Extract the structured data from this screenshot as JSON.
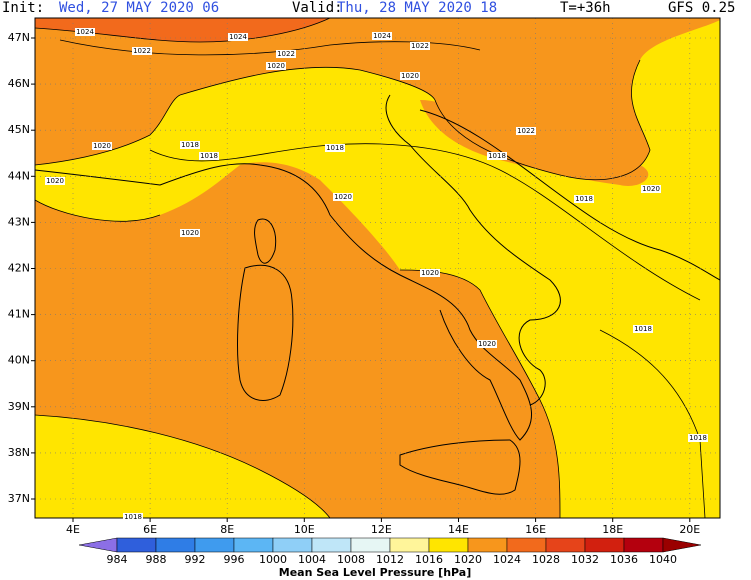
{
  "header": {
    "init_label": "Init:",
    "init": "Wed, 27 MAY 2020  06",
    "valid_label": "Valid:",
    "valid": "Thu, 28 MAY 2020  18",
    "lead": "T=+36h",
    "model": "GFS 0.25"
  },
  "map": {
    "lat_labels": [
      "47N",
      "46N",
      "45N",
      "44N",
      "43N",
      "42N",
      "41N",
      "40N",
      "39N",
      "38N",
      "37N"
    ],
    "lon_labels": [
      "4E",
      "6E",
      "8E",
      "10E",
      "12E",
      "14E",
      "16E",
      "18E",
      "20E"
    ],
    "isobar_labels": [
      "1024",
      "1024",
      "1024",
      "1022",
      "1022",
      "1022",
      "1022",
      "1020",
      "1020",
      "1020",
      "1020",
      "1020",
      "1020",
      "1020",
      "1020",
      "1020",
      "1018",
      "1018",
      "1018",
      "1018",
      "1018",
      "1018",
      "1018",
      "1018"
    ]
  },
  "colorbar": {
    "title": "Mean Sea Level Pressure [hPa]",
    "levels": [
      984,
      988,
      992,
      996,
      1000,
      1004,
      1008,
      1012,
      1016,
      1020,
      1024,
      1028,
      1032,
      1036,
      1040
    ],
    "colors": [
      "#8c6fe6",
      "#2f5fdc",
      "#2f7de6",
      "#3f9bee",
      "#5cb6f4",
      "#8fcff7",
      "#bfe6f8",
      "#e6f6f4",
      "#fff59a",
      "#ffe500",
      "#f7961c",
      "#f26a1c",
      "#e6441a",
      "#d2200f",
      "#b4000e",
      "#9a0000"
    ]
  }
}
